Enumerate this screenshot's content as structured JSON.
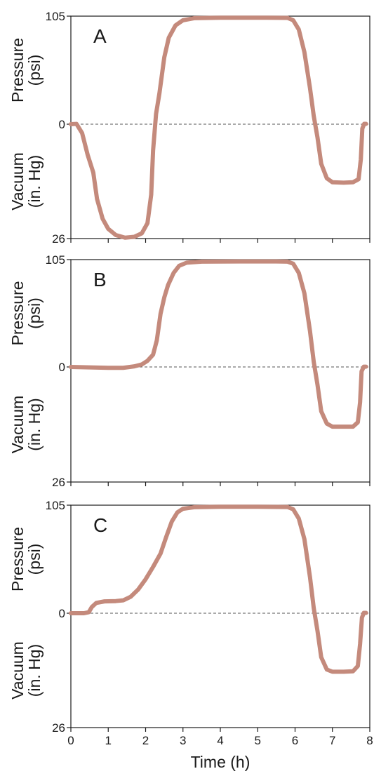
{
  "chart_data": [
    {
      "type": "line",
      "panel_label": "A",
      "upper_label": [
        "Pressure",
        "(psi)"
      ],
      "lower_label": [
        "Vacuum",
        "(in. Hg)"
      ],
      "y_ticks": [
        "105",
        "0",
        "26"
      ],
      "x_ticks": [
        "0",
        "1",
        "2",
        "3",
        "4",
        "5",
        "6",
        "7",
        "8"
      ],
      "xlim": [
        0,
        8
      ],
      "pressure_range": [
        0,
        105
      ],
      "vacuum_range": [
        0,
        26
      ],
      "zero_line": "dashed",
      "line_color": "#c48a7c",
      "series": [
        {
          "points": [
            [
              0.0,
              0
            ],
            [
              0.15,
              0.3
            ],
            [
              0.3,
              -2
            ],
            [
              0.45,
              -7
            ],
            [
              0.6,
              -11
            ],
            [
              0.7,
              -17
            ],
            [
              0.85,
              -21.5
            ],
            [
              1.0,
              -23.8
            ],
            [
              1.2,
              -25.2
            ],
            [
              1.45,
              -25.8
            ],
            [
              1.7,
              -25.6
            ],
            [
              1.9,
              -24.8
            ],
            [
              2.05,
              -22.5
            ],
            [
              2.15,
              -16
            ],
            [
              2.2,
              -6
            ],
            [
              2.28,
              10
            ],
            [
              2.37,
              30
            ],
            [
              2.5,
              65
            ],
            [
              2.62,
              84
            ],
            [
              2.8,
              96
            ],
            [
              3.0,
              101
            ],
            [
              3.3,
              103
            ],
            [
              4.0,
              103.5
            ],
            [
              5.0,
              103.5
            ],
            [
              5.8,
              103.3
            ],
            [
              5.95,
              101
            ],
            [
              6.1,
              92
            ],
            [
              6.25,
              70
            ],
            [
              6.4,
              35
            ],
            [
              6.5,
              8
            ],
            [
              6.6,
              -3
            ],
            [
              6.7,
              -9
            ],
            [
              6.85,
              -12.3
            ],
            [
              7.0,
              -13.2
            ],
            [
              7.3,
              -13.3
            ],
            [
              7.55,
              -13.2
            ],
            [
              7.7,
              -12.5
            ],
            [
              7.76,
              -8
            ],
            [
              7.8,
              -1
            ],
            [
              7.85,
              0.3
            ],
            [
              7.9,
              0.3
            ]
          ]
        }
      ]
    },
    {
      "type": "line",
      "panel_label": "B",
      "upper_label": [
        "Pressure",
        "(psi)"
      ],
      "lower_label": [
        "Vacuum",
        "(in. Hg)"
      ],
      "y_ticks": [
        "105",
        "0",
        "26"
      ],
      "x_ticks": [
        "0",
        "1",
        "2",
        "3",
        "4",
        "5",
        "6",
        "7",
        "8"
      ],
      "xlim": [
        0,
        8
      ],
      "pressure_range": [
        0,
        105
      ],
      "vacuum_range": [
        0,
        26
      ],
      "zero_line": "dashed",
      "line_color": "#c48a7c",
      "series": [
        {
          "points": [
            [
              0.0,
              0
            ],
            [
              0.5,
              -0.1
            ],
            [
              1.0,
              -0.2
            ],
            [
              1.4,
              -0.2
            ],
            [
              1.7,
              0.6
            ],
            [
              1.9,
              2.5
            ],
            [
              2.05,
              6
            ],
            [
              2.2,
              12
            ],
            [
              2.3,
              26
            ],
            [
              2.4,
              52
            ],
            [
              2.5,
              68
            ],
            [
              2.6,
              80
            ],
            [
              2.75,
              92
            ],
            [
              2.9,
              99
            ],
            [
              3.1,
              102
            ],
            [
              3.5,
              103
            ],
            [
              4.5,
              103.2
            ],
            [
              5.5,
              103.2
            ],
            [
              5.8,
              103
            ],
            [
              5.95,
              101
            ],
            [
              6.1,
              92
            ],
            [
              6.25,
              72
            ],
            [
              6.4,
              35
            ],
            [
              6.5,
              5
            ],
            [
              6.6,
              -4
            ],
            [
              6.7,
              -10
            ],
            [
              6.85,
              -12.8
            ],
            [
              7.0,
              -13.5
            ],
            [
              7.3,
              -13.5
            ],
            [
              7.55,
              -13.5
            ],
            [
              7.68,
              -12.5
            ],
            [
              7.74,
              -8
            ],
            [
              7.78,
              -1
            ],
            [
              7.84,
              0.3
            ],
            [
              7.9,
              0.3
            ]
          ]
        }
      ]
    },
    {
      "type": "line",
      "panel_label": "C",
      "upper_label": [
        "Pressure",
        "(psi)"
      ],
      "lower_label": [
        "Vacuum",
        "(in. Hg)"
      ],
      "y_ticks": [
        "105",
        "0",
        "26"
      ],
      "x_ticks": [
        "0",
        "1",
        "2",
        "3",
        "4",
        "5",
        "6",
        "7",
        "8"
      ],
      "xlim": [
        0,
        8
      ],
      "pressure_range": [
        0,
        105
      ],
      "vacuum_range": [
        0,
        26
      ],
      "zero_line": "dashed",
      "line_color": "#c48a7c",
      "series": [
        {
          "points": [
            [
              0.0,
              0
            ],
            [
              0.35,
              0
            ],
            [
              0.48,
              1
            ],
            [
              0.56,
              6
            ],
            [
              0.68,
              10
            ],
            [
              0.9,
              11.5
            ],
            [
              1.2,
              11.8
            ],
            [
              1.4,
              12.5
            ],
            [
              1.6,
              16
            ],
            [
              1.8,
              23
            ],
            [
              2.0,
              33
            ],
            [
              2.2,
              45
            ],
            [
              2.4,
              58
            ],
            [
              2.55,
              74
            ],
            [
              2.7,
              89
            ],
            [
              2.85,
              98
            ],
            [
              3.0,
              101.5
            ],
            [
              3.3,
              103
            ],
            [
              4.0,
              103.5
            ],
            [
              5.0,
              103.5
            ],
            [
              5.8,
              103.2
            ],
            [
              5.95,
              101
            ],
            [
              6.1,
              92
            ],
            [
              6.25,
              72
            ],
            [
              6.4,
              35
            ],
            [
              6.5,
              5
            ],
            [
              6.6,
              -4
            ],
            [
              6.7,
              -10
            ],
            [
              6.85,
              -12.8
            ],
            [
              7.0,
              -13.3
            ],
            [
              7.3,
              -13.3
            ],
            [
              7.55,
              -13.2
            ],
            [
              7.68,
              -12
            ],
            [
              7.74,
              -7
            ],
            [
              7.79,
              -1
            ],
            [
              7.84,
              0.3
            ],
            [
              7.9,
              0.3
            ]
          ]
        }
      ]
    }
  ],
  "x_axis_title": "Time (h)"
}
